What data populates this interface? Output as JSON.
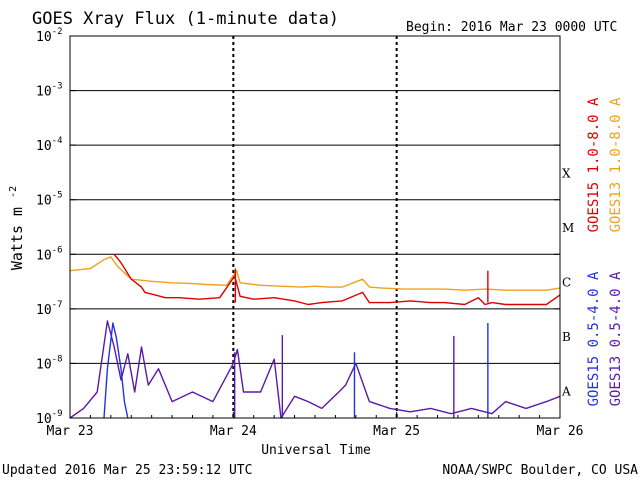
{
  "header": {
    "title": "GOES Xray Flux (1-minute data)",
    "begin": "Begin:  2016 Mar 23 0000 UTC"
  },
  "footer": {
    "updated": "Updated 2016 Mar 25 23:59:12 UTC",
    "credit": "NOAA/SWPC Boulder, CO USA"
  },
  "colors": {
    "goes15_long": "#dd0000",
    "goes13_long": "#f0a020",
    "goes15_short": "#2233dd",
    "goes13_short": "#5a1aa8",
    "grid": "#000000"
  },
  "chart_data": {
    "type": "line",
    "title": "GOES Xray Flux (1-minute data)",
    "xlabel": "Universal Time",
    "ylabel_base": "Watts m",
    "ylabel_exp": "-2",
    "xlim": [
      0,
      72
    ],
    "ylim": [
      1e-09,
      0.01
    ],
    "log_scale_y": true,
    "grid": true,
    "x_ticks": [
      {
        "x": 0,
        "label": "Mar 23"
      },
      {
        "x": 24,
        "label": "Mar 24"
      },
      {
        "x": 48,
        "label": "Mar 25"
      },
      {
        "x": 72,
        "label": "Mar 26"
      }
    ],
    "y_ticks": [
      {
        "exp": -2,
        "label": "10",
        "sup": "-2"
      },
      {
        "exp": -3,
        "label": "10",
        "sup": "-3"
      },
      {
        "exp": -4,
        "label": "10",
        "sup": "-4"
      },
      {
        "exp": -5,
        "label": "10",
        "sup": "-5"
      },
      {
        "exp": -6,
        "label": "10",
        "sup": "-6"
      },
      {
        "exp": -7,
        "label": "10",
        "sup": "-7"
      },
      {
        "exp": -8,
        "label": "10",
        "sup": "-8"
      },
      {
        "exp": -9,
        "label": "10",
        "sup": "-9"
      }
    ],
    "flare_classes": [
      {
        "label": "X",
        "exp": -4
      },
      {
        "label": "M",
        "exp": -5
      },
      {
        "label": "C",
        "exp": -6
      },
      {
        "label": "B",
        "exp": -7
      },
      {
        "label": "A",
        "exp": -8
      }
    ],
    "legend": [
      {
        "name": "GOES15 1.0-8.0 A",
        "color": "#dd0000"
      },
      {
        "name": "GOES13 1.0-8.0 A",
        "color": "#f0a020"
      },
      {
        "name": "GOES15 0.5-4.0 A",
        "color": "#2233dd"
      },
      {
        "name": "GOES13 0.5-4.0 A",
        "color": "#5a1aa8"
      }
    ],
    "series": [
      {
        "name": "GOES13 1.0-8.0 A",
        "color": "#f0a020",
        "points": [
          [
            0,
            5e-07
          ],
          [
            3,
            5.5e-07
          ],
          [
            5,
            8e-07
          ],
          [
            6,
            9e-07
          ],
          [
            7,
            6e-07
          ],
          [
            9,
            3.5e-07
          ],
          [
            12,
            3.2e-07
          ],
          [
            15,
            3e-07
          ],
          [
            18,
            2.9e-07
          ],
          [
            20,
            2.8e-07
          ],
          [
            23,
            2.7e-07
          ],
          [
            24.5,
            5e-07
          ],
          [
            25,
            3e-07
          ],
          [
            28,
            2.7e-07
          ],
          [
            31,
            2.6e-07
          ],
          [
            34,
            2.5e-07
          ],
          [
            36,
            2.6e-07
          ],
          [
            38,
            2.5e-07
          ],
          [
            40,
            2.5e-07
          ],
          [
            43,
            3.5e-07
          ],
          [
            44,
            2.5e-07
          ],
          [
            46,
            2.4e-07
          ],
          [
            49,
            2.3e-07
          ],
          [
            52,
            2.3e-07
          ],
          [
            55,
            2.3e-07
          ],
          [
            58,
            2.2e-07
          ],
          [
            61,
            2.3e-07
          ],
          [
            64,
            2.2e-07
          ],
          [
            67,
            2.2e-07
          ],
          [
            70,
            2.2e-07
          ],
          [
            72,
            2.4e-07
          ]
        ]
      },
      {
        "name": "GOES15 1.0-8.0 A",
        "color": "#dd0000",
        "points": [
          [
            6.5,
            1e-06
          ],
          [
            7.5,
            7e-07
          ],
          [
            9,
            3.5e-07
          ],
          [
            10.5,
            2.5e-07
          ],
          [
            11,
            2e-07
          ],
          [
            12.5,
            1.8e-07
          ],
          [
            14,
            1.6e-07
          ],
          [
            16,
            1.6e-07
          ],
          [
            19,
            1.5e-07
          ],
          [
            22,
            1.6e-07
          ],
          [
            24.2,
            4e-07
          ],
          [
            25,
            1.7e-07
          ],
          [
            27,
            1.5e-07
          ],
          [
            30,
            1.6e-07
          ],
          [
            33,
            1.4e-07
          ],
          [
            35,
            1.2e-07
          ],
          [
            37,
            1.3e-07
          ],
          [
            40,
            1.4e-07
          ],
          [
            43,
            2e-07
          ],
          [
            44,
            1.3e-07
          ],
          [
            47,
            1.3e-07
          ],
          [
            50,
            1.4e-07
          ],
          [
            53,
            1.3e-07
          ],
          [
            55,
            1.3e-07
          ],
          [
            58,
            1.2e-07
          ],
          [
            60,
            1.6e-07
          ],
          [
            61,
            1.2e-07
          ],
          [
            62,
            1.3e-07
          ],
          [
            64,
            1.2e-07
          ],
          [
            67,
            1.2e-07
          ],
          [
            70,
            1.2e-07
          ],
          [
            72,
            1.8e-07
          ]
        ]
      },
      {
        "name": "GOES13 0.5-4.0 A",
        "color": "#5a1aa8",
        "points": [
          [
            0,
            1e-09
          ],
          [
            2,
            1.5e-09
          ],
          [
            4,
            3e-09
          ],
          [
            5.5,
            6e-08
          ],
          [
            6.5,
            2e-08
          ],
          [
            7.5,
            5e-09
          ],
          [
            8.5,
            1.5e-08
          ],
          [
            9.5,
            3e-09
          ],
          [
            10.5,
            2e-08
          ],
          [
            11.5,
            4e-09
          ],
          [
            13,
            8e-09
          ],
          [
            15,
            2e-09
          ],
          [
            18,
            3e-09
          ],
          [
            21,
            2e-09
          ],
          [
            24,
            1e-08
          ],
          [
            24.6,
            1.8e-08
          ],
          [
            25.5,
            3e-09
          ],
          [
            28,
            3e-09
          ],
          [
            30,
            1.2e-08
          ],
          [
            31,
            1e-09
          ],
          [
            33,
            2.5e-09
          ],
          [
            35,
            2e-09
          ],
          [
            37,
            1.5e-09
          ],
          [
            39.5,
            3e-09
          ],
          [
            40.5,
            4e-09
          ],
          [
            42,
            1e-08
          ],
          [
            44,
            2e-09
          ],
          [
            47,
            1.5e-09
          ],
          [
            50,
            1.3e-09
          ],
          [
            53,
            1.5e-09
          ],
          [
            56,
            1.2e-09
          ],
          [
            59,
            1.5e-09
          ],
          [
            62,
            1.2e-09
          ],
          [
            64,
            2e-09
          ],
          [
            67,
            1.5e-09
          ],
          [
            70,
            2e-09
          ],
          [
            72,
            2.5e-09
          ]
        ]
      },
      {
        "name": "GOES15 0.5-4.0 A",
        "color": "#2233dd",
        "points": [
          [
            5,
            1e-09
          ],
          [
            5.5,
            8e-09
          ],
          [
            6.3,
            5.5e-08
          ],
          [
            6.8,
            3e-08
          ],
          [
            7.5,
            8e-09
          ],
          [
            8,
            2e-09
          ],
          [
            8.5,
            1e-09
          ]
        ]
      }
    ],
    "spikes": [
      {
        "x": 24.2,
        "y": 1.6e-08,
        "color": "#5a1aa8"
      },
      {
        "x": 31.2,
        "y": 3.3e-08,
        "color": "#5a1aa8"
      },
      {
        "x": 41.8,
        "y": 1.6e-08,
        "color": "#2233dd"
      },
      {
        "x": 56.4,
        "y": 3.2e-08,
        "color": "#5a1aa8"
      },
      {
        "x": 61.4,
        "y": 5e-07,
        "color": "#dd0000"
      },
      {
        "x": 61.4,
        "y": 5.5e-08,
        "color": "#2233dd"
      },
      {
        "x": 24.3,
        "y": 5.5e-07,
        "color": "#dd0000"
      }
    ]
  }
}
